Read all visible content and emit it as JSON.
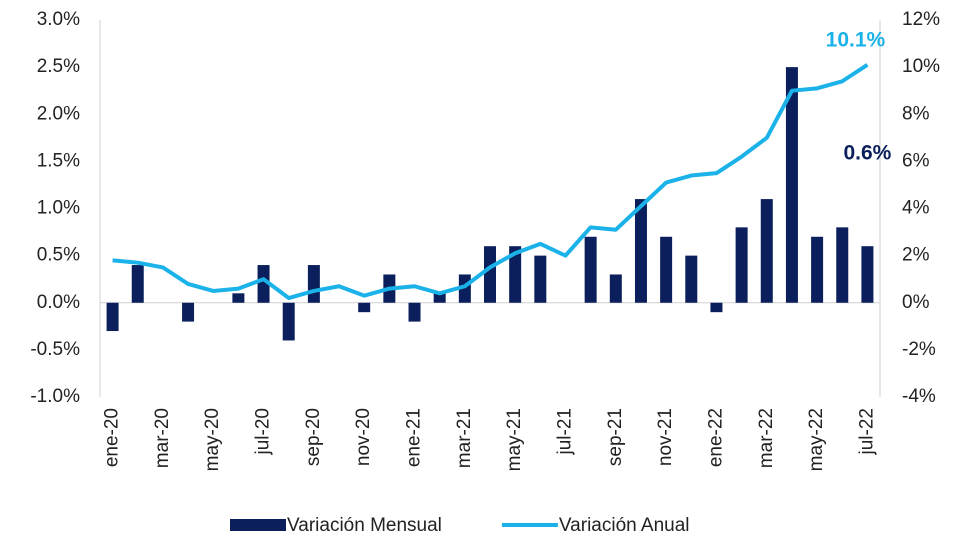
{
  "chart_data": {
    "type": "bar_line",
    "categories": [
      "ene-20",
      null,
      "mar-20",
      null,
      "may-20",
      null,
      "jul-20",
      null,
      "sep-20",
      null,
      "nov-20",
      null,
      "ene-21",
      null,
      "mar-21",
      null,
      "may-21",
      null,
      "jul-21",
      null,
      "sep-21",
      null,
      "nov-21",
      null,
      "ene-22",
      null,
      "mar-22",
      null,
      "may-22",
      null,
      "jul-22"
    ],
    "series": [
      {
        "name": "Variación Mensual",
        "type": "bar",
        "axis": "y",
        "color": "#0b1f5c",
        "values": [
          -0.3,
          0.4,
          0.0,
          -0.2,
          0.0,
          0.1,
          0.4,
          -0.4,
          0.4,
          0.0,
          -0.1,
          0.3,
          -0.2,
          0.1,
          0.3,
          0.6,
          0.6,
          0.5,
          0.0,
          0.7,
          0.3,
          1.1,
          0.7,
          0.5,
          -0.1,
          0.8,
          1.1,
          2.5,
          0.7,
          0.8,
          0.6
        ],
        "value_labels": [
          null,
          null,
          null,
          null,
          null,
          null,
          null,
          null,
          null,
          null,
          null,
          null,
          null,
          null,
          null,
          null,
          null,
          null,
          null,
          null,
          null,
          null,
          null,
          null,
          null,
          null,
          null,
          null,
          null,
          null,
          "0.6%"
        ]
      },
      {
        "name": "Variación Anual",
        "type": "line",
        "axis": "y2",
        "color": "#1ab2e8",
        "values": [
          1.8,
          1.7,
          1.5,
          0.8,
          0.5,
          0.6,
          1.0,
          0.2,
          0.5,
          0.7,
          0.3,
          0.6,
          0.7,
          0.4,
          0.7,
          1.5,
          2.1,
          2.5,
          2.0,
          3.2,
          3.1,
          4.1,
          5.1,
          5.4,
          5.5,
          6.2,
          7.0,
          9.0,
          9.1,
          9.4,
          10.1
        ],
        "value_labels": [
          null,
          null,
          null,
          null,
          null,
          null,
          null,
          null,
          null,
          null,
          null,
          null,
          null,
          null,
          null,
          null,
          null,
          null,
          null,
          null,
          null,
          null,
          null,
          null,
          null,
          null,
          null,
          null,
          null,
          null,
          "10.1%"
        ]
      }
    ],
    "ylim": [
      -1.0,
      3.0
    ],
    "yticks": [
      {
        "value": -1.0,
        "label": "-1.0%"
      },
      {
        "value": -0.5,
        "label": "-0.5%"
      },
      {
        "value": 0.0,
        "label": "0.0%"
      },
      {
        "value": 0.5,
        "label": "0.5%"
      },
      {
        "value": 1.0,
        "label": "1.0%"
      },
      {
        "value": 1.5,
        "label": "1.5%"
      },
      {
        "value": 2.0,
        "label": "2.0%"
      },
      {
        "value": 2.5,
        "label": "2.5%"
      },
      {
        "value": 3.0,
        "label": "3.0%"
      }
    ],
    "y2lim": [
      -4,
      12
    ],
    "y2ticks": [
      {
        "value": -4,
        "label": "-4%"
      },
      {
        "value": -2,
        "label": "-2%"
      },
      {
        "value": 0,
        "label": "0%"
      },
      {
        "value": 2,
        "label": "2%"
      },
      {
        "value": 4,
        "label": "4%"
      },
      {
        "value": 6,
        "label": "6%"
      },
      {
        "value": 8,
        "label": "8%"
      },
      {
        "value": 10,
        "label": "10%"
      },
      {
        "value": 12,
        "label": "12%"
      }
    ],
    "legend": "bottom"
  }
}
